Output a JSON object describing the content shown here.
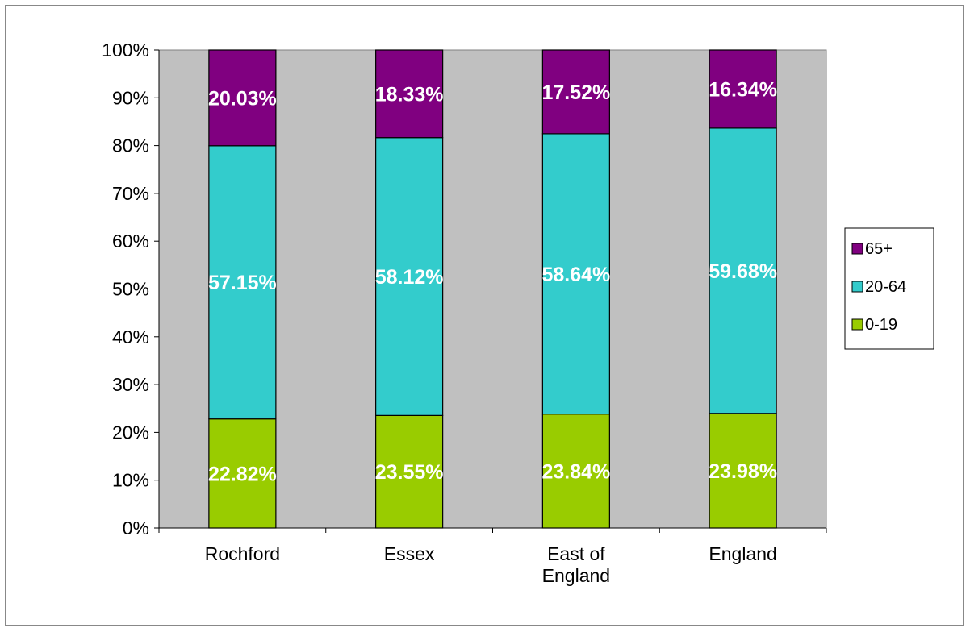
{
  "chart_data": {
    "type": "bar",
    "stacked": true,
    "percent_stacked": true,
    "categories": [
      [
        "Rochford"
      ],
      [
        "Essex"
      ],
      [
        "East of",
        "England"
      ],
      [
        "England"
      ]
    ],
    "series": [
      {
        "name": "0-19",
        "color": "#99cc00",
        "values": [
          22.82,
          23.55,
          23.84,
          23.98
        ],
        "labels": [
          "22.82%",
          "23.55%",
          "23.84%",
          "23.98%"
        ]
      },
      {
        "name": "20-64",
        "color": "#33cccc",
        "values": [
          57.15,
          58.12,
          58.64,
          59.68
        ],
        "labels": [
          "57.15%",
          "58.12%",
          "58.64%",
          "59.68%"
        ]
      },
      {
        "name": "65+",
        "color": "#800080",
        "values": [
          20.03,
          18.33,
          17.52,
          16.34
        ],
        "labels": [
          "20.03%",
          "18.33%",
          "17.52%",
          "16.34%"
        ]
      }
    ],
    "y_ticks": [
      "0%",
      "10%",
      "20%",
      "30%",
      "40%",
      "50%",
      "60%",
      "70%",
      "80%",
      "90%",
      "100%"
    ],
    "ylim": [
      0,
      100
    ],
    "plot_background": "#c0c0c0",
    "legend_order": [
      "65+",
      "20-64",
      "0-19"
    ],
    "legend_position": "right",
    "grid": false
  }
}
